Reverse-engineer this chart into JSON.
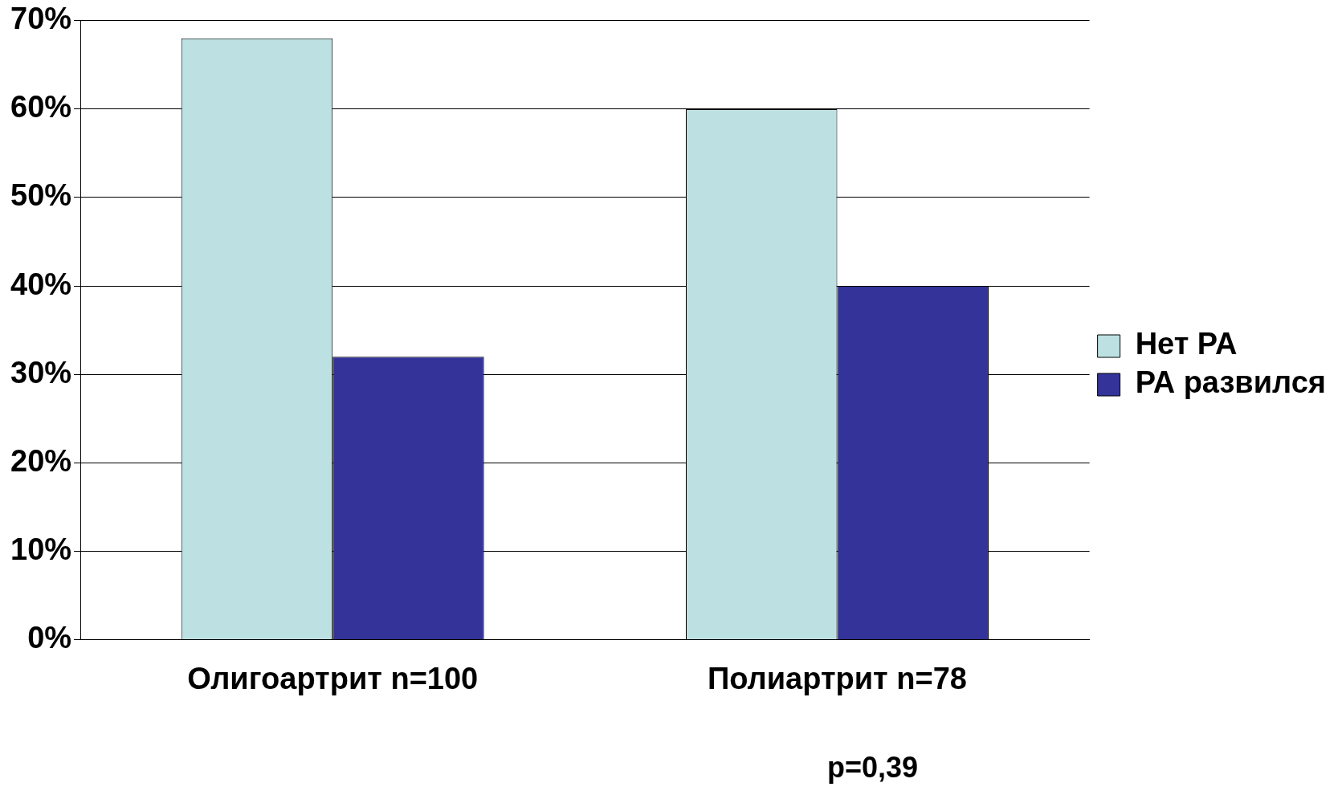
{
  "chart_data": {
    "type": "bar",
    "categories": [
      "Олигоартрит n=100",
      "Полиартрит n=78"
    ],
    "series": [
      {
        "name": "Нет РА",
        "color": "#bde1e3",
        "values": [
          68,
          60
        ]
      },
      {
        "name": "РА развился",
        "color": "#333399",
        "values": [
          32,
          40
        ]
      }
    ],
    "ylim": [
      0,
      70
    ],
    "yticks": [
      {
        "value": 0,
        "label": "0%"
      },
      {
        "value": 10,
        "label": "10%"
      },
      {
        "value": 20,
        "label": "20%"
      },
      {
        "value": 30,
        "label": "30%"
      },
      {
        "value": 40,
        "label": "40%"
      },
      {
        "value": 50,
        "label": "50%"
      },
      {
        "value": 60,
        "label": "60%"
      },
      {
        "value": 70,
        "label": "70%"
      }
    ],
    "grid": "y",
    "legend": "right",
    "annotations": [
      "p=0,39"
    ]
  }
}
